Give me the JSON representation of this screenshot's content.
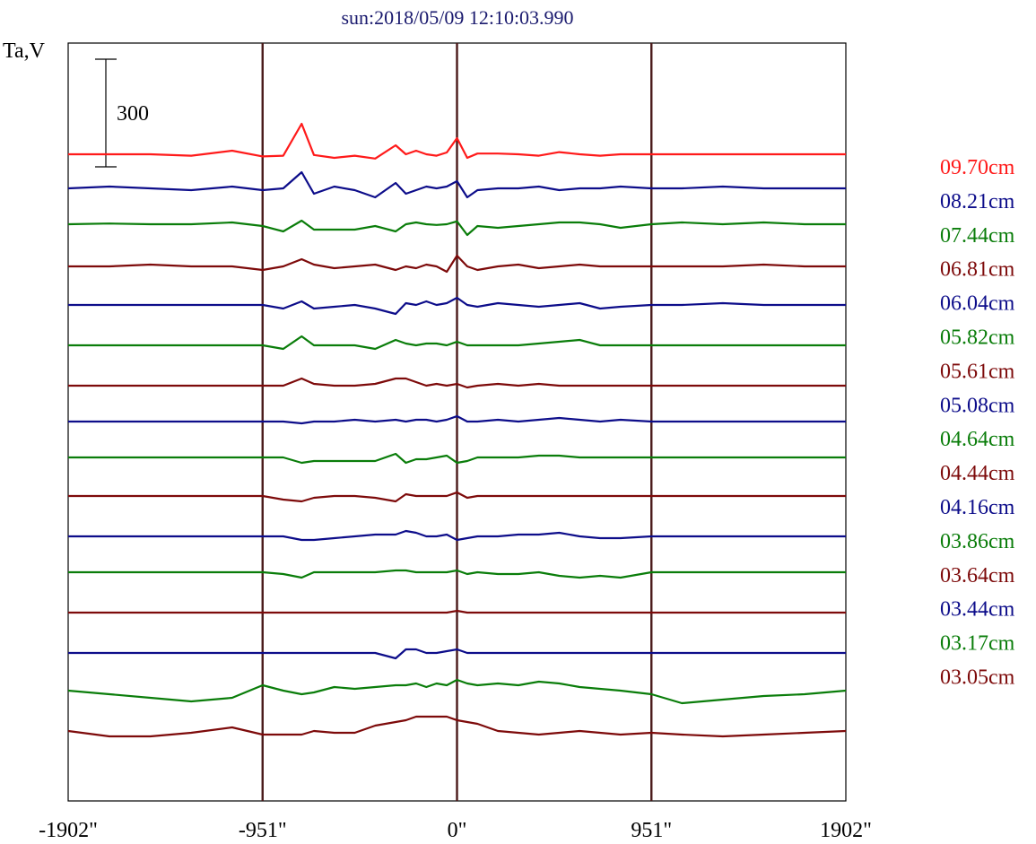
{
  "chart_data": {
    "type": "line",
    "title": "sun:2018/05/09 12:10:03.990",
    "ylabel": "Ta,V",
    "scale_bar_label": "300",
    "scale_bar_value": 300,
    "xlim": [
      -1902,
      1902
    ],
    "x_ticks": [
      -1902,
      -951,
      0,
      951,
      1902
    ],
    "x_tick_labels": [
      "-1902\"",
      "-951\"",
      "0\"",
      "951\"",
      "1902\""
    ],
    "vertical_markers": [
      -951,
      0,
      951
    ],
    "legend_placement": "right",
    "colors": {
      "red": "#ff1a1a",
      "navy": "#0d0d8a",
      "green": "#0a7d0a",
      "maroon": "#7d0a0a",
      "marker": "#4a1a1a"
    },
    "x": [
      -1902,
      -1700,
      -1500,
      -1300,
      -1100,
      -951,
      -850,
      -760,
      -700,
      -600,
      -500,
      -400,
      -300,
      -250,
      -200,
      -150,
      -100,
      -50,
      0,
      50,
      100,
      200,
      300,
      400,
      500,
      600,
      700,
      800,
      951,
      1100,
      1300,
      1500,
      1700,
      1902
    ],
    "series": [
      {
        "name": "09.70cm",
        "color": "#ff1a1a",
        "offset": 172,
        "values": [
          0,
          0,
          0,
          -4,
          10,
          -6,
          -4,
          85,
          -2,
          -10,
          -4,
          -12,
          25,
          0,
          10,
          0,
          -4,
          5,
          45,
          -10,
          2,
          2,
          0,
          -4,
          6,
          0,
          -4,
          0,
          0,
          0,
          0,
          0,
          0,
          0
        ]
      },
      {
        "name": "08.21cm",
        "color": "#0d0d8a",
        "offset": 210,
        "values": [
          0,
          5,
          0,
          -5,
          5,
          -5,
          0,
          45,
          -15,
          5,
          -5,
          -25,
          15,
          -15,
          -5,
          5,
          0,
          5,
          20,
          -25,
          -5,
          0,
          0,
          5,
          -5,
          0,
          0,
          5,
          0,
          0,
          5,
          0,
          0,
          0
        ]
      },
      {
        "name": "07.44cm",
        "color": "#0a7d0a",
        "offset": 250,
        "values": [
          0,
          2,
          0,
          0,
          5,
          -5,
          -20,
          10,
          -15,
          -15,
          -15,
          -5,
          -20,
          0,
          5,
          0,
          -2,
          0,
          8,
          -30,
          -5,
          -10,
          -5,
          0,
          5,
          5,
          0,
          -10,
          0,
          5,
          0,
          5,
          0,
          0
        ]
      },
      {
        "name": "06.81cm",
        "color": "#7d0a0a",
        "offset": 297,
        "values": [
          0,
          0,
          5,
          0,
          0,
          -10,
          0,
          20,
          5,
          -5,
          0,
          5,
          -10,
          0,
          -5,
          5,
          0,
          -15,
          30,
          0,
          -10,
          0,
          5,
          -5,
          0,
          5,
          0,
          0,
          0,
          0,
          0,
          5,
          0,
          0
        ]
      },
      {
        "name": "06.04cm",
        "color": "#0d0d8a",
        "offset": 340,
        "values": [
          0,
          0,
          0,
          0,
          0,
          0,
          -10,
          10,
          -10,
          -5,
          0,
          -10,
          -25,
          5,
          0,
          10,
          0,
          5,
          20,
          0,
          -5,
          5,
          0,
          -5,
          0,
          5,
          -10,
          -5,
          0,
          0,
          5,
          0,
          0,
          0
        ]
      },
      {
        "name": "05.82cm",
        "color": "#0a7d0a",
        "offset": 385,
        "values": [
          0,
          0,
          0,
          0,
          0,
          0,
          -10,
          25,
          0,
          0,
          0,
          -10,
          15,
          5,
          0,
          5,
          5,
          0,
          10,
          0,
          0,
          0,
          0,
          5,
          10,
          15,
          0,
          0,
          0,
          0,
          0,
          0,
          0,
          0
        ]
      },
      {
        "name": "05.61cm",
        "color": "#7d0a0a",
        "offset": 430,
        "values": [
          0,
          0,
          0,
          0,
          0,
          0,
          0,
          20,
          5,
          0,
          0,
          5,
          20,
          20,
          10,
          0,
          5,
          0,
          5,
          -5,
          0,
          5,
          0,
          5,
          0,
          0,
          0,
          0,
          0,
          0,
          0,
          0,
          0,
          0
        ]
      },
      {
        "name": "05.08cm",
        "color": "#0d0d8a",
        "offset": 470,
        "values": [
          0,
          0,
          0,
          0,
          0,
          0,
          0,
          -5,
          0,
          0,
          5,
          0,
          5,
          0,
          5,
          5,
          0,
          5,
          15,
          0,
          0,
          5,
          0,
          5,
          10,
          5,
          0,
          5,
          0,
          0,
          0,
          0,
          0,
          0
        ]
      },
      {
        "name": "04.64cm",
        "color": "#0a7d0a",
        "offset": 510,
        "values": [
          0,
          0,
          0,
          0,
          0,
          0,
          0,
          -15,
          -10,
          -10,
          -10,
          -10,
          10,
          -15,
          -5,
          -5,
          0,
          5,
          -15,
          -10,
          0,
          0,
          0,
          5,
          5,
          0,
          0,
          0,
          0,
          0,
          0,
          0,
          0,
          0
        ]
      },
      {
        "name": "04.44cm",
        "color": "#7d0a0a",
        "offset": 553,
        "values": [
          0,
          0,
          0,
          0,
          0,
          0,
          -10,
          -15,
          -5,
          0,
          0,
          -5,
          -15,
          5,
          0,
          0,
          0,
          0,
          10,
          -5,
          0,
          0,
          0,
          0,
          0,
          0,
          0,
          0,
          0,
          0,
          0,
          0,
          0,
          0
        ]
      },
      {
        "name": "04.16cm",
        "color": "#0d0d8a",
        "offset": 598,
        "values": [
          0,
          0,
          0,
          0,
          0,
          0,
          0,
          -10,
          -10,
          -5,
          0,
          5,
          5,
          15,
          10,
          0,
          0,
          5,
          -10,
          -5,
          0,
          0,
          5,
          5,
          10,
          0,
          -5,
          -5,
          0,
          0,
          0,
          0,
          0,
          0
        ]
      },
      {
        "name": "03.86cm",
        "color": "#0a7d0a",
        "offset": 638,
        "values": [
          0,
          0,
          0,
          0,
          0,
          0,
          -5,
          -15,
          0,
          0,
          0,
          0,
          5,
          5,
          0,
          0,
          0,
          0,
          5,
          -5,
          0,
          -5,
          -5,
          0,
          -10,
          -15,
          -10,
          -15,
          0,
          0,
          0,
          0,
          0,
          0
        ]
      },
      {
        "name": "03.64cm",
        "color": "#7d0a0a",
        "offset": 683,
        "values": [
          0,
          0,
          0,
          0,
          0,
          0,
          0,
          0,
          0,
          0,
          0,
          0,
          0,
          0,
          0,
          0,
          0,
          0,
          5,
          0,
          0,
          0,
          0,
          0,
          0,
          0,
          0,
          0,
          0,
          0,
          0,
          0,
          0,
          0
        ]
      },
      {
        "name": "03.44cm",
        "color": "#0d0d8a",
        "offset": 728,
        "values": [
          0,
          0,
          0,
          0,
          0,
          0,
          0,
          0,
          0,
          0,
          0,
          0,
          -15,
          10,
          10,
          0,
          0,
          5,
          10,
          0,
          0,
          0,
          0,
          0,
          0,
          0,
          0,
          0,
          0,
          0,
          0,
          0,
          0,
          0
        ]
      },
      {
        "name": "03.17cm",
        "color": "#0a7d0a",
        "offset": 770,
        "values": [
          0,
          -10,
          -20,
          -30,
          -20,
          15,
          0,
          -10,
          -5,
          10,
          5,
          10,
          15,
          15,
          20,
          10,
          20,
          15,
          30,
          20,
          15,
          20,
          15,
          25,
          20,
          10,
          5,
          0,
          -10,
          -35,
          -25,
          -15,
          -10,
          0
        ]
      },
      {
        "name": "03.05cm",
        "color": "#7d0a0a",
        "offset": 815,
        "values": [
          0,
          -15,
          -15,
          -5,
          10,
          -10,
          -10,
          -10,
          0,
          -5,
          -5,
          15,
          25,
          30,
          40,
          40,
          40,
          40,
          30,
          25,
          20,
          0,
          -5,
          -10,
          -5,
          0,
          -5,
          -10,
          -5,
          -10,
          -15,
          -10,
          -5,
          0
        ]
      }
    ]
  }
}
